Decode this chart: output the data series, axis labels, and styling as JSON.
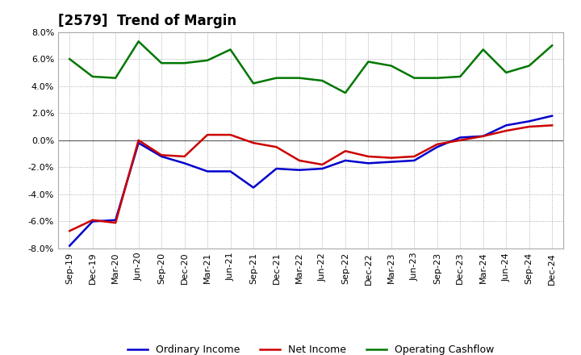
{
  "title": "[2579]  Trend of Margin",
  "xlabels": [
    "Sep-19",
    "Dec-19",
    "Mar-20",
    "Jun-20",
    "Sep-20",
    "Dec-20",
    "Mar-21",
    "Jun-21",
    "Sep-21",
    "Dec-21",
    "Mar-22",
    "Jun-22",
    "Sep-22",
    "Dec-22",
    "Mar-23",
    "Jun-23",
    "Sep-23",
    "Dec-23",
    "Mar-24",
    "Jun-24",
    "Sep-24",
    "Dec-24"
  ],
  "ordinary_income": [
    -7.8,
    -6.0,
    -5.9,
    -0.2,
    -1.2,
    -1.7,
    -2.3,
    -2.3,
    -3.5,
    -2.1,
    -2.2,
    -2.1,
    -1.5,
    -1.7,
    -1.6,
    -1.5,
    -0.5,
    0.2,
    0.3,
    1.1,
    1.4,
    1.8
  ],
  "net_income": [
    -6.7,
    -5.9,
    -6.1,
    0.0,
    -1.1,
    -1.2,
    0.4,
    0.4,
    -0.2,
    -0.5,
    -1.5,
    -1.8,
    -0.8,
    -1.2,
    -1.3,
    -1.2,
    -0.3,
    0.0,
    0.3,
    0.7,
    1.0,
    1.1
  ],
  "operating_cashflow": [
    6.0,
    4.7,
    4.6,
    7.3,
    5.7,
    5.7,
    5.9,
    6.7,
    4.2,
    4.6,
    4.6,
    4.4,
    3.5,
    5.8,
    5.5,
    4.6,
    4.6,
    4.7,
    6.7,
    5.0,
    5.5,
    7.0
  ],
  "ordinary_income_color": "#0000CC",
  "net_income_color": "#CC0000",
  "operating_cashflow_color": "#007700",
  "ylim": [
    -8.0,
    8.0
  ],
  "yticks": [
    -8.0,
    -6.0,
    -4.0,
    -2.0,
    0.0,
    2.0,
    4.0,
    6.0,
    8.0
  ],
  "background_color": "#FFFFFF",
  "plot_bg_color": "#FFFFFF",
  "grid_color": "#999999",
  "line_width": 1.8,
  "legend_labels": [
    "Ordinary Income",
    "Net Income",
    "Operating Cashflow"
  ],
  "title_fontsize": 12,
  "tick_fontsize": 8
}
